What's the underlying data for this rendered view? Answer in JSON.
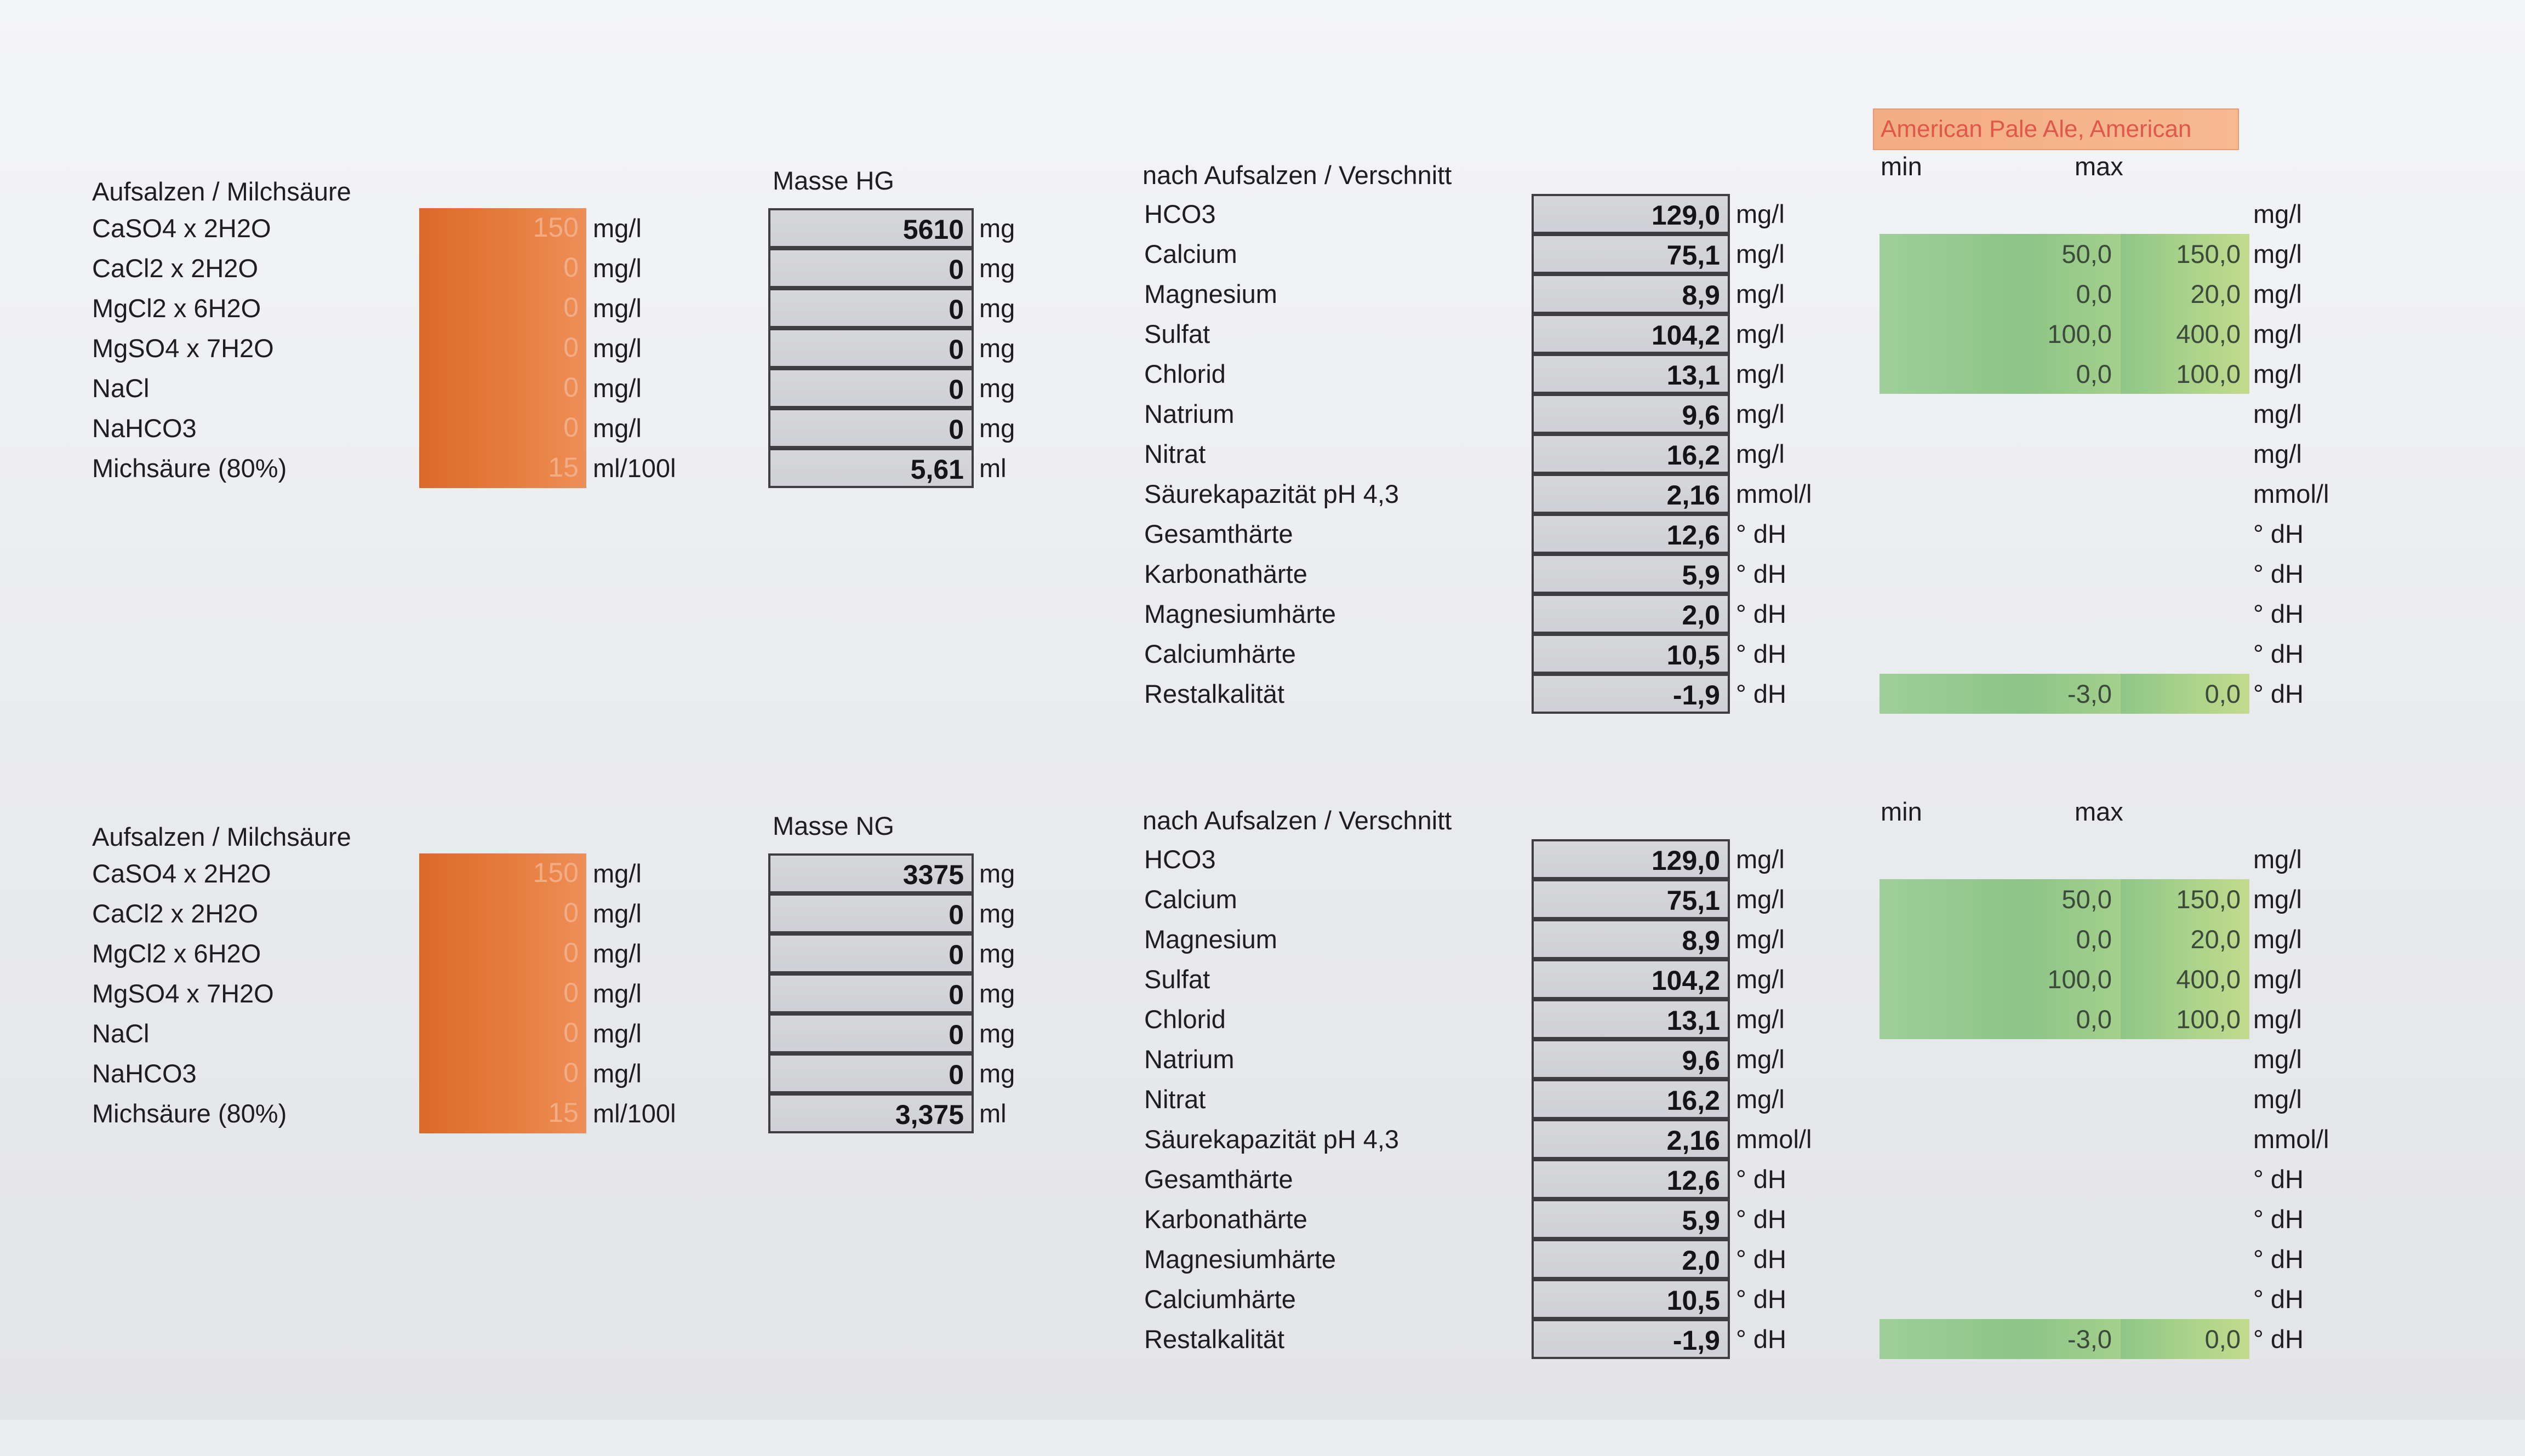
{
  "style_name": "American Pale Ale, American",
  "blocks": [
    {
      "salt_header": "Aufsalzen / Milchsäure",
      "mass_header": "Masse HG",
      "result_header": "nach Aufsalzen / Verschnitt",
      "min_label": "min",
      "max_label": "max",
      "salts": [
        {
          "name": "CaSO4 x 2H2O",
          "amount": "150",
          "unit": "mg/l",
          "mass": "5610",
          "mass_unit": "mg"
        },
        {
          "name": "CaCl2 x 2H2O",
          "amount": "0",
          "unit": "mg/l",
          "mass": "0",
          "mass_unit": "mg"
        },
        {
          "name": "MgCl2 x 6H2O",
          "amount": "0",
          "unit": "mg/l",
          "mass": "0",
          "mass_unit": "mg"
        },
        {
          "name": "MgSO4 x 7H2O",
          "amount": "0",
          "unit": "mg/l",
          "mass": "0",
          "mass_unit": "mg"
        },
        {
          "name": "NaCl",
          "amount": "0",
          "unit": "mg/l",
          "mass": "0",
          "mass_unit": "mg"
        },
        {
          "name": "NaHCO3",
          "amount": "0",
          "unit": "mg/l",
          "mass": "0",
          "mass_unit": "mg"
        },
        {
          "name": "Michsäure (80%)",
          "amount": "15",
          "unit": "ml/100l",
          "mass": "5,61",
          "mass_unit": "ml"
        }
      ],
      "results": [
        {
          "name": "HCO3",
          "value": "129,0",
          "unit": "mg/l",
          "min": "",
          "max": "",
          "range_unit": "mg/l"
        },
        {
          "name": "Calcium",
          "value": "75,1",
          "unit": "mg/l",
          "min": "50,0",
          "max": "150,0",
          "range_unit": "mg/l"
        },
        {
          "name": "Magnesium",
          "value": "8,9",
          "unit": "mg/l",
          "min": "0,0",
          "max": "20,0",
          "range_unit": "mg/l"
        },
        {
          "name": "Sulfat",
          "value": "104,2",
          "unit": "mg/l",
          "min": "100,0",
          "max": "400,0",
          "range_unit": "mg/l"
        },
        {
          "name": "Chlorid",
          "value": "13,1",
          "unit": "mg/l",
          "min": "0,0",
          "max": "100,0",
          "range_unit": "mg/l"
        },
        {
          "name": "Natrium",
          "value": "9,6",
          "unit": "mg/l",
          "min": "",
          "max": "",
          "range_unit": "mg/l"
        },
        {
          "name": "Nitrat",
          "value": "16,2",
          "unit": "mg/l",
          "min": "",
          "max": "",
          "range_unit": "mg/l"
        },
        {
          "name": "Säurekapazität pH 4,3",
          "value": "2,16",
          "unit": "mmol/l",
          "min": "",
          "max": "",
          "range_unit": "mmol/l"
        },
        {
          "name": "Gesamthärte",
          "value": "12,6",
          "unit": "° dH",
          "min": "",
          "max": "",
          "range_unit": "° dH"
        },
        {
          "name": "Karbonathärte",
          "value": "5,9",
          "unit": "° dH",
          "min": "",
          "max": "",
          "range_unit": "° dH"
        },
        {
          "name": "Magnesiumhärte",
          "value": "2,0",
          "unit": "° dH",
          "min": "",
          "max": "",
          "range_unit": "° dH"
        },
        {
          "name": "Calciumhärte",
          "value": "10,5",
          "unit": "° dH",
          "min": "",
          "max": "",
          "range_unit": "° dH"
        },
        {
          "name": "Restalkalität",
          "value": "-1,9",
          "unit": "° dH",
          "min": "-3,0",
          "max": "0,0",
          "range_unit": "° dH"
        }
      ]
    },
    {
      "salt_header": "Aufsalzen / Milchsäure",
      "mass_header": "Masse NG",
      "result_header": "nach Aufsalzen / Verschnitt",
      "min_label": "min",
      "max_label": "max",
      "salts": [
        {
          "name": "CaSO4 x 2H2O",
          "amount": "150",
          "unit": "mg/l",
          "mass": "3375",
          "mass_unit": "mg"
        },
        {
          "name": "CaCl2 x 2H2O",
          "amount": "0",
          "unit": "mg/l",
          "mass": "0",
          "mass_unit": "mg"
        },
        {
          "name": "MgCl2 x 6H2O",
          "amount": "0",
          "unit": "mg/l",
          "mass": "0",
          "mass_unit": "mg"
        },
        {
          "name": "MgSO4 x 7H2O",
          "amount": "0",
          "unit": "mg/l",
          "mass": "0",
          "mass_unit": "mg"
        },
        {
          "name": "NaCl",
          "amount": "0",
          "unit": "mg/l",
          "mass": "0",
          "mass_unit": "mg"
        },
        {
          "name": "NaHCO3",
          "amount": "0",
          "unit": "mg/l",
          "mass": "0",
          "mass_unit": "mg"
        },
        {
          "name": "Michsäure (80%)",
          "amount": "15",
          "unit": "ml/100l",
          "mass": "3,375",
          "mass_unit": "ml"
        }
      ],
      "results": [
        {
          "name": "HCO3",
          "value": "129,0",
          "unit": "mg/l",
          "min": "",
          "max": "",
          "range_unit": "mg/l"
        },
        {
          "name": "Calcium",
          "value": "75,1",
          "unit": "mg/l",
          "min": "50,0",
          "max": "150,0",
          "range_unit": "mg/l"
        },
        {
          "name": "Magnesium",
          "value": "8,9",
          "unit": "mg/l",
          "min": "0,0",
          "max": "20,0",
          "range_unit": "mg/l"
        },
        {
          "name": "Sulfat",
          "value": "104,2",
          "unit": "mg/l",
          "min": "100,0",
          "max": "400,0",
          "range_unit": "mg/l"
        },
        {
          "name": "Chlorid",
          "value": "13,1",
          "unit": "mg/l",
          "min": "0,0",
          "max": "100,0",
          "range_unit": "mg/l"
        },
        {
          "name": "Natrium",
          "value": "9,6",
          "unit": "mg/l",
          "min": "",
          "max": "",
          "range_unit": "mg/l"
        },
        {
          "name": "Nitrat",
          "value": "16,2",
          "unit": "mg/l",
          "min": "",
          "max": "",
          "range_unit": "mg/l"
        },
        {
          "name": "Säurekapazität pH 4,3",
          "value": "2,16",
          "unit": "mmol/l",
          "min": "",
          "max": "",
          "range_unit": "mmol/l"
        },
        {
          "name": "Gesamthärte",
          "value": "12,6",
          "unit": "° dH",
          "min": "",
          "max": "",
          "range_unit": "° dH"
        },
        {
          "name": "Karbonathärte",
          "value": "5,9",
          "unit": "° dH",
          "min": "",
          "max": "",
          "range_unit": "° dH"
        },
        {
          "name": "Magnesiumhärte",
          "value": "2,0",
          "unit": "° dH",
          "min": "",
          "max": "",
          "range_unit": "° dH"
        },
        {
          "name": "Calciumhärte",
          "value": "10,5",
          "unit": "° dH",
          "min": "",
          "max": "",
          "range_unit": "° dH"
        },
        {
          "name": "Restalkalität",
          "value": "-1,9",
          "unit": "° dH",
          "min": "-3,0",
          "max": "0,0",
          "range_unit": "° dH"
        }
      ]
    }
  ]
}
